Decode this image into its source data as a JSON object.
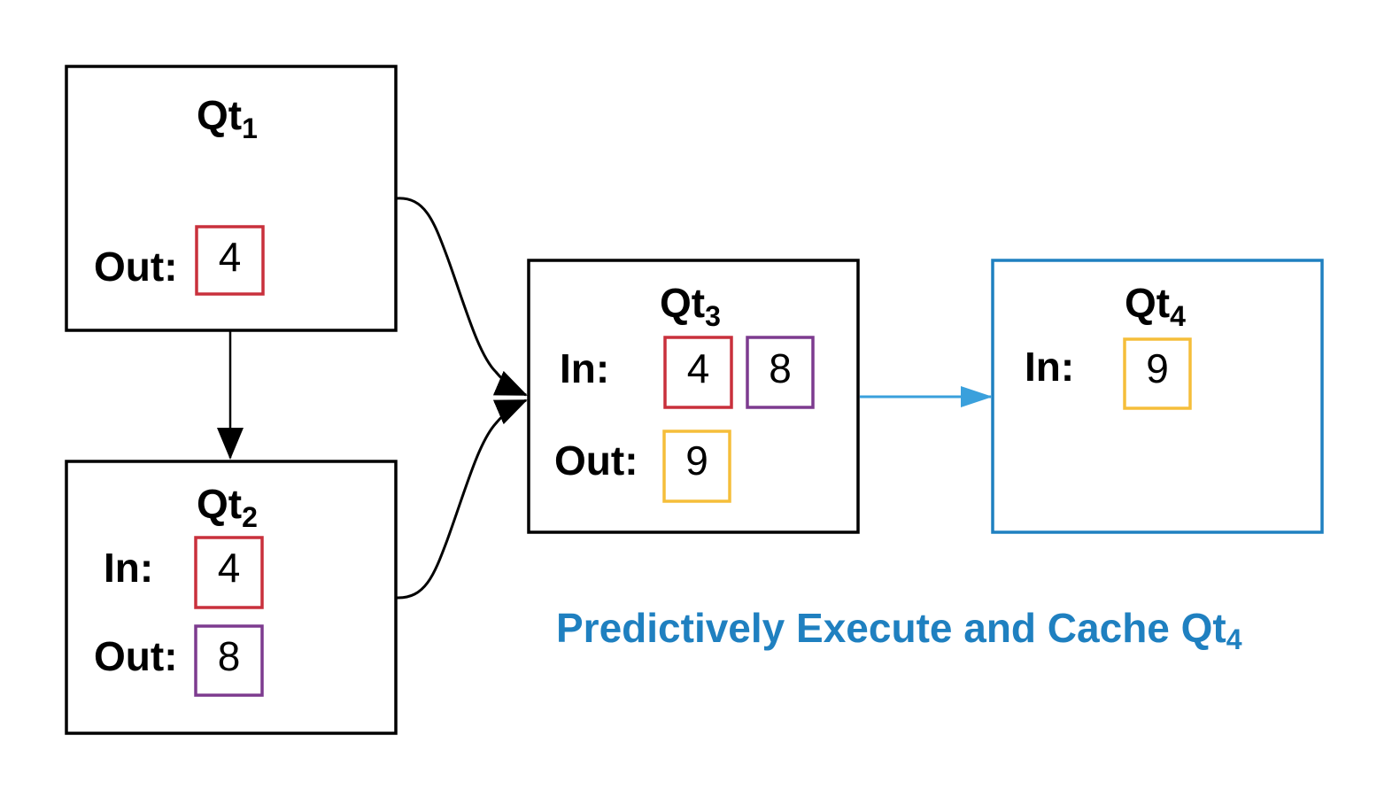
{
  "colors": {
    "black": "#000000",
    "red": "#c9303c",
    "purple": "#7d3b8f",
    "yellow": "#f5be3a",
    "blue": "#1f80c0",
    "arrow_blue": "#3aa0dc"
  },
  "nodes": {
    "qt1": {
      "title": "Qt",
      "sub": "1",
      "out_label": "Out:",
      "out_value": "4"
    },
    "qt2": {
      "title": "Qt",
      "sub": "2",
      "in_label": "In:",
      "in_value": "4",
      "out_label": "Out:",
      "out_value": "8"
    },
    "qt3": {
      "title": "Qt",
      "sub": "3",
      "in_label": "In:",
      "in_values": [
        "4",
        "8"
      ],
      "out_label": "Out:",
      "out_value": "9"
    },
    "qt4": {
      "title": "Qt",
      "sub": "4",
      "in_label": "In:",
      "in_value": "9"
    }
  },
  "caption": {
    "text": "Predictively Execute and Cache Qt",
    "sub": "4"
  }
}
